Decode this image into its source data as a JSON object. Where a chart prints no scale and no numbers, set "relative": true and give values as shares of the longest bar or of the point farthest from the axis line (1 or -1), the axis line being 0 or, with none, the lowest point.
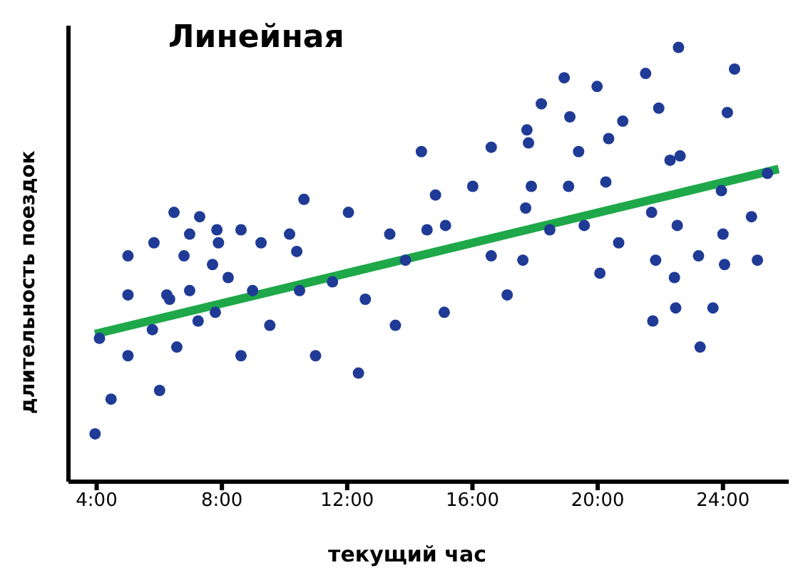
{
  "chart_data": {
    "type": "scatter",
    "title": "Линейная",
    "xlabel": "текущий час",
    "ylabel": "длительность поездок",
    "relative": true,
    "tick_labels": "x",
    "marker": "circle",
    "xlim": [
      3.1,
      26.1
    ],
    "xticks": [
      {
        "value": 4,
        "label": "4:00"
      },
      {
        "value": 8,
        "label": "8:00"
      },
      {
        "value": 12,
        "label": "12:00"
      },
      {
        "value": 16,
        "label": "16:00"
      },
      {
        "value": 20,
        "label": "20:00"
      },
      {
        "value": 24,
        "label": "24:00"
      }
    ],
    "series": [
      {
        "color": "#1f3b96",
        "x": [
          3.95,
          4.46,
          4.09,
          5.0,
          5.0,
          5.0,
          5.83,
          5.78,
          6.01,
          6.47,
          6.24,
          6.33,
          6.56,
          6.79,
          6.97,
          6.97,
          7.29,
          7.24,
          7.84,
          7.89,
          7.7,
          7.79,
          8.2,
          8.61,
          8.98,
          8.61,
          9.25,
          9.53,
          10.16,
          10.39,
          10.48,
          10.62,
          10.99,
          11.53,
          12.04,
          12.58,
          12.36,
          13.36,
          13.54,
          22.58,
          24.37,
          21.53,
          19.98,
          18.93,
          18.2,
          21.95,
          24.14,
          19.11,
          20.8,
          17.74,
          17.79,
          16.6,
          20.35,
          19.39,
          14.37,
          22.63,
          22.31,
          25.42,
          16.01,
          17.88,
          19.07,
          20.26,
          14.82,
          23.95,
          17.7,
          21.72,
          24.91,
          15.14,
          14.55,
          19.57,
          22.54,
          18.47,
          24.0,
          13.86,
          20.67,
          16.6,
          17.61,
          21.85,
          23.22,
          24.05,
          25.1,
          20.07,
          22.45,
          17.11,
          15.1,
          21.76,
          22.49,
          23.68,
          23.27
        ],
        "values": [
          0.11,
          0.19,
          0.33,
          0.52,
          0.43,
          0.29,
          0.55,
          0.35,
          0.21,
          0.62,
          0.43,
          0.42,
          0.31,
          0.52,
          0.57,
          0.44,
          0.61,
          0.37,
          0.58,
          0.55,
          0.5,
          0.39,
          0.47,
          0.58,
          0.44,
          0.29,
          0.55,
          0.36,
          0.57,
          0.53,
          0.44,
          0.65,
          0.29,
          0.46,
          0.62,
          0.42,
          0.25,
          0.57,
          0.36,
          1.0,
          0.95,
          0.94,
          0.91,
          0.93,
          0.87,
          0.86,
          0.85,
          0.84,
          0.83,
          0.81,
          0.78,
          0.77,
          0.79,
          0.76,
          0.76,
          0.75,
          0.74,
          0.71,
          0.68,
          0.68,
          0.68,
          0.69,
          0.66,
          0.67,
          0.63,
          0.62,
          0.61,
          0.59,
          0.58,
          0.59,
          0.59,
          0.58,
          0.57,
          0.51,
          0.55,
          0.52,
          0.51,
          0.51,
          0.52,
          0.5,
          0.51,
          0.48,
          0.47,
          0.43,
          0.39,
          0.37,
          0.4,
          0.4,
          0.31
        ]
      },
      {
        "type": "line",
        "color": "#1fa84a",
        "line_style": "solid",
        "marker": "none",
        "x": [
          3.95,
          25.78
        ],
        "values": [
          0.34,
          0.72
        ]
      }
    ]
  }
}
